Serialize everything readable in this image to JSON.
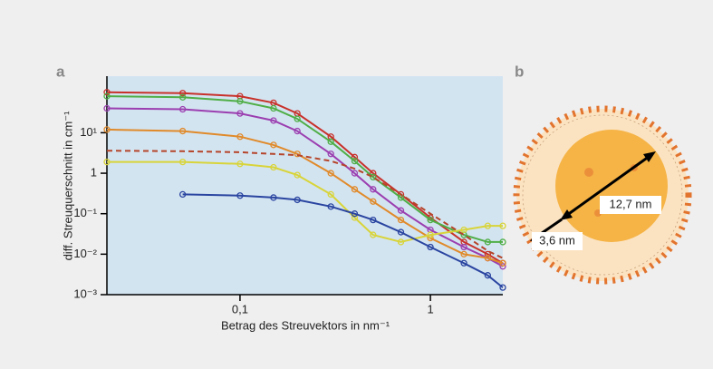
{
  "chart_data": {
    "type": "line",
    "panel_label": "a",
    "x_label": "Betrag des Streuvektors in nm⁻¹",
    "y_label": "diff. Streuquerschnitt in cm⁻¹",
    "x_scale": "log",
    "y_scale": "log",
    "xlim": [
      0.02,
      2.4
    ],
    "ylim": [
      0.001,
      250
    ],
    "xticks": [
      {
        "value": 0.1,
        "label": "0,1"
      },
      1
    ],
    "yticks": [
      {
        "value": 0.001,
        "label": "10⁻³"
      },
      {
        "value": 0.01,
        "label": "10⁻²"
      },
      {
        "value": 0.1,
        "label": "10⁻¹"
      },
      1,
      {
        "value": 10,
        "label": "10¹"
      }
    ],
    "x": [
      0.02,
      0.05,
      0.1,
      0.15,
      0.2,
      0.3,
      0.4,
      0.5,
      0.7,
      1,
      1.5,
      2,
      2.4
    ],
    "series": [
      {
        "color": "#c8312a",
        "markers": true,
        "line_style": "solid",
        "values": [
          100,
          95,
          80,
          55,
          30,
          8,
          2.5,
          1,
          0.3,
          0.08,
          0.02,
          0.01,
          0.006
        ]
      },
      {
        "color": "#4fae46",
        "markers": true,
        "line_style": "solid",
        "values": [
          80,
          75,
          60,
          40,
          22,
          6,
          2,
          0.8,
          0.25,
          0.07,
          0.03,
          0.02,
          0.02
        ]
      },
      {
        "color": "#9b3fb0",
        "markers": true,
        "line_style": "solid",
        "values": [
          40,
          38,
          30,
          20,
          11,
          3,
          1,
          0.4,
          0.12,
          0.04,
          0.015,
          0.008,
          0.005
        ]
      },
      {
        "color": "#e08a2a",
        "markers": true,
        "line_style": "solid",
        "values": [
          12,
          11,
          8,
          5,
          3,
          1,
          0.4,
          0.2,
          0.07,
          0.025,
          0.01,
          0.008,
          0.006
        ]
      },
      {
        "color": "#b5452a",
        "markers": false,
        "line_style": "dashed",
        "values": [
          3.6,
          3.5,
          3.3,
          3.0,
          2.8,
          2,
          1.3,
          0.8,
          0.3,
          0.1,
          0.03,
          0.012,
          0.008
        ]
      },
      {
        "color": "#d8d43a",
        "markers": true,
        "line_style": "solid",
        "values": [
          1.9,
          1.9,
          1.7,
          1.4,
          0.9,
          0.3,
          0.08,
          0.03,
          0.02,
          0.03,
          0.04,
          0.05,
          0.05
        ]
      },
      {
        "color": "#2a45a0",
        "markers": true,
        "line_style": "solid",
        "values": [
          null,
          0.3,
          0.28,
          0.25,
          0.22,
          0.15,
          0.1,
          0.07,
          0.035,
          0.015,
          0.006,
          0.003,
          0.0015
        ]
      }
    ]
  },
  "diagram": {
    "panel_label": "b",
    "core_label": "12,7 nm",
    "shell_label": "3,6 nm"
  }
}
